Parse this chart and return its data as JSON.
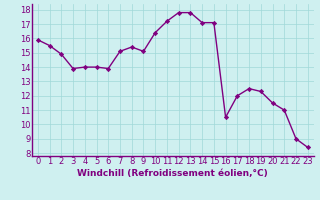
{
  "x": [
    0,
    1,
    2,
    3,
    4,
    5,
    6,
    7,
    8,
    9,
    10,
    11,
    12,
    13,
    14,
    15,
    16,
    17,
    18,
    19,
    20,
    21,
    22,
    23
  ],
  "y": [
    15.9,
    15.5,
    14.9,
    13.9,
    14.0,
    14.0,
    13.9,
    15.1,
    15.4,
    15.1,
    16.4,
    17.2,
    17.8,
    17.8,
    17.1,
    17.1,
    10.5,
    12.0,
    12.5,
    12.3,
    11.5,
    11.0,
    9.0,
    8.4
  ],
  "line_color": "#800080",
  "marker": "D",
  "marker_size": 2.2,
  "line_width": 1.0,
  "bg_color": "#cff0f0",
  "grid_color": "#a0d8d8",
  "xlabel": "Windchill (Refroidissement éolien,°C)",
  "xlabel_fontsize": 6.5,
  "xtick_labels": [
    "0",
    "1",
    "2",
    "3",
    "4",
    "5",
    "6",
    "7",
    "8",
    "9",
    "10",
    "11",
    "12",
    "13",
    "14",
    "15",
    "16",
    "17",
    "18",
    "19",
    "20",
    "21",
    "22",
    "23"
  ],
  "ylim": [
    7.8,
    18.4
  ],
  "yticks": [
    8,
    9,
    10,
    11,
    12,
    13,
    14,
    15,
    16,
    17,
    18
  ],
  "tick_fontsize": 6.0,
  "border_color": "#800080",
  "border_width": 1.0
}
